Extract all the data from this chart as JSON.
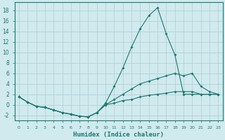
{
  "xlabel": "Humidex (Indice chaleur)",
  "background_color": "#d0eaee",
  "line_color": "#1a7a6e",
  "grid_color": "#b0cdd4",
  "xlim": [
    -0.5,
    23.5
  ],
  "ylim": [
    -3,
    19.5
  ],
  "xticks": [
    0,
    1,
    2,
    3,
    4,
    5,
    6,
    7,
    8,
    9,
    10,
    11,
    12,
    13,
    14,
    15,
    16,
    17,
    18,
    19,
    20,
    21,
    22,
    23
  ],
  "yticks": [
    -2,
    0,
    2,
    4,
    6,
    8,
    10,
    12,
    14,
    16,
    18
  ],
  "series": [
    {
      "x": [
        0,
        1,
        2,
        3,
        4,
        5,
        6,
        7,
        8,
        9,
        10,
        11,
        12,
        13,
        14,
        15,
        16,
        17,
        18,
        19,
        20,
        21,
        22,
        23
      ],
      "y": [
        1.5,
        0.5,
        -0.3,
        -0.5,
        -1.0,
        -1.5,
        -1.8,
        -2.2,
        -2.3,
        -1.5,
        0.3,
        3.5,
        7.0,
        11.0,
        14.5,
        17.0,
        18.5,
        13.5,
        9.5,
        2.0,
        2.0,
        2.0,
        2.0,
        2.0
      ]
    },
    {
      "x": [
        0,
        1,
        2,
        3,
        4,
        5,
        6,
        7,
        8,
        9,
        10,
        11,
        12,
        13,
        14,
        15,
        16,
        17,
        18,
        19,
        20,
        21,
        22,
        23
      ],
      "y": [
        1.5,
        0.5,
        -0.3,
        -0.5,
        -1.0,
        -1.5,
        -1.8,
        -2.2,
        -2.3,
        -1.5,
        0.0,
        1.0,
        2.0,
        3.0,
        4.0,
        4.5,
        5.0,
        5.5,
        6.0,
        5.5,
        6.0,
        3.5,
        2.5,
        2.0
      ]
    },
    {
      "x": [
        0,
        1,
        2,
        3,
        4,
        5,
        6,
        7,
        8,
        9,
        10,
        11,
        12,
        13,
        14,
        15,
        16,
        17,
        18,
        19,
        20,
        21,
        22,
        23
      ],
      "y": [
        1.5,
        0.5,
        -0.3,
        -0.5,
        -1.0,
        -1.5,
        -1.8,
        -2.2,
        -2.3,
        -1.5,
        0.0,
        0.3,
        0.8,
        1.0,
        1.5,
        1.8,
        2.0,
        2.2,
        2.5,
        2.5,
        2.5,
        2.0,
        2.0,
        2.0
      ]
    }
  ]
}
